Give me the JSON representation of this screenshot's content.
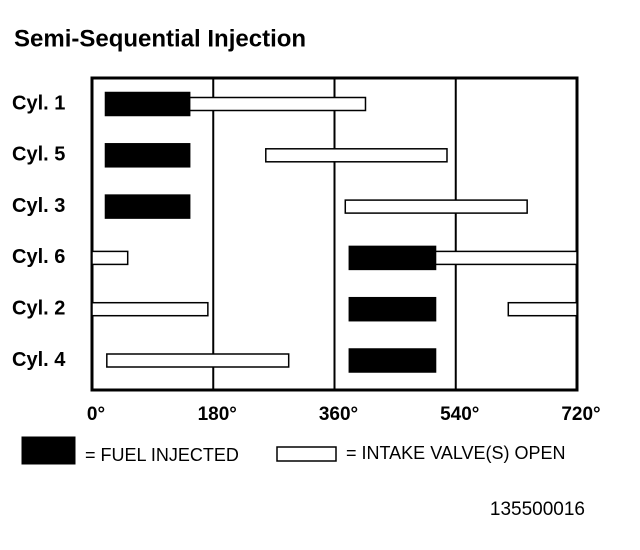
{
  "chart_data": {
    "type": "timing",
    "title": "Semi-Sequential Injection",
    "categories": [
      "Cyl. 1",
      "Cyl. 5",
      "Cyl. 3",
      "Cyl. 6",
      "Cyl. 2",
      "Cyl. 4"
    ],
    "series": [
      {
        "name": "= FUEL INJECTED",
        "color": "#000000",
        "values": [
          [
            [
              20,
              145
            ]
          ],
          [
            [
              20,
              145
            ]
          ],
          [
            [
              20,
              145
            ]
          ],
          [
            [
              382,
              510
            ]
          ],
          [
            [
              382,
              510
            ]
          ],
          [
            [
              382,
              510
            ]
          ]
        ]
      },
      {
        "name": "= INTAKE VALVE(S) OPEN",
        "color": "#ffffff",
        "values": [
          [
            [
              138,
              406
            ]
          ],
          [
            [
              258,
              527
            ]
          ],
          [
            [
              376,
              646
            ]
          ],
          [
            [
              0,
              53
            ],
            [
              500,
              720
            ]
          ],
          [
            [
              0,
              172
            ],
            [
              618,
              720
            ]
          ],
          [
            [
              22,
              292
            ]
          ]
        ]
      }
    ],
    "xlim": [
      0,
      720
    ],
    "xticks": [
      {
        "value": 0,
        "label": "0°"
      },
      {
        "value": 180,
        "label": "180°"
      },
      {
        "value": 360,
        "label": "360°"
      },
      {
        "value": 540,
        "label": "540°"
      },
      {
        "value": 720,
        "label": "720°"
      }
    ],
    "grid": true,
    "footnote": "135500016"
  }
}
